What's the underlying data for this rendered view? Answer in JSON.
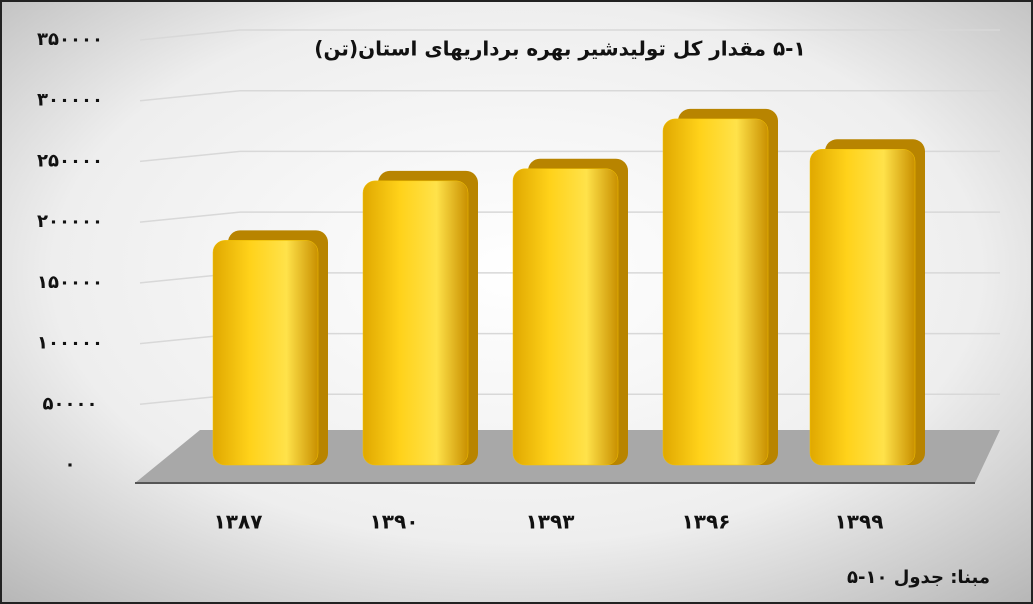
{
  "chart_data": {
    "type": "bar",
    "title": "۵-۱ مقدار کل تولیدشیر بهره برداریهای استان(تن)",
    "source": "مبنا: جدول ۱۰-۵",
    "categories": [
      "۱۳۸۷",
      "۱۳۹۰",
      "۱۳۹۳",
      "۱۳۹۶",
      "۱۳۹۹"
    ],
    "values": [
      185000,
      234000,
      244000,
      285000,
      260000
    ],
    "color": "#f5c400",
    "ylim": [
      0,
      350000
    ],
    "yticks": [
      {
        "value": 0,
        "label": "۰"
      },
      {
        "value": 50000,
        "label": "۵۰۰۰۰"
      },
      {
        "value": 100000,
        "label": "۱۰۰۰۰۰"
      },
      {
        "value": 150000,
        "label": "۱۵۰۰۰۰"
      },
      {
        "value": 200000,
        "label": "۲۰۰۰۰۰"
      },
      {
        "value": 250000,
        "label": "۲۵۰۰۰۰"
      },
      {
        "value": 300000,
        "label": "۳۰۰۰۰۰"
      },
      {
        "value": 350000,
        "label": "۳۵۰۰۰۰"
      }
    ],
    "grid": true
  }
}
